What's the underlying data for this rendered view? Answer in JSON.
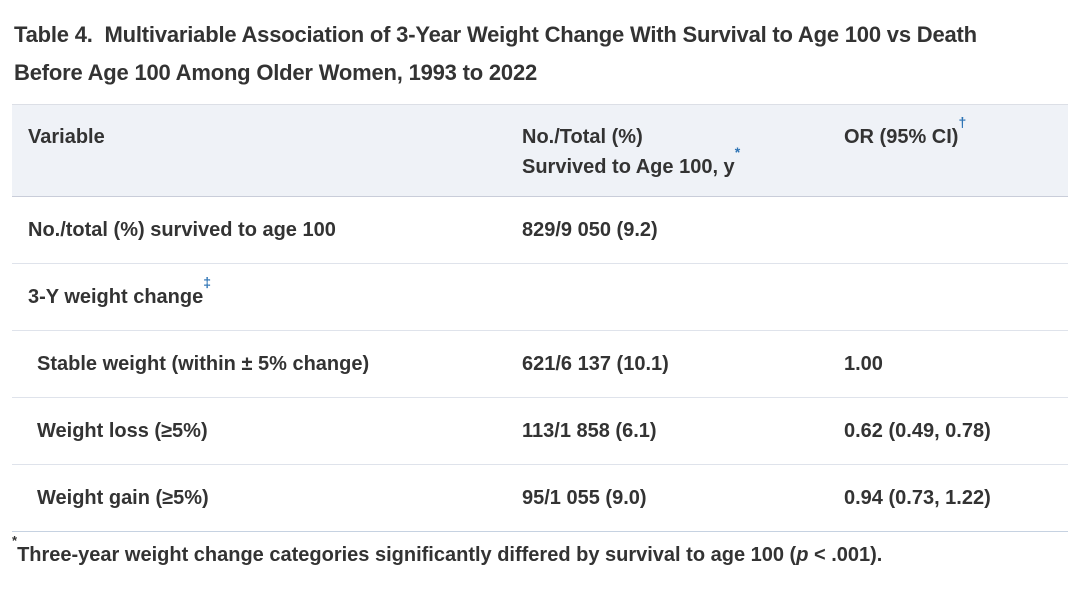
{
  "title_lines": [
    "Table 4.  Multivariable Association of 3-Year Weight Change With Survival to Age 100 vs Death",
    "Before Age 100 Among Older Women, 1993 to 2022"
  ],
  "colors": {
    "accent_blue": "#2E74B5",
    "header_background": "#EFF2F7",
    "text": "#333333"
  },
  "table": {
    "columns": [
      {
        "label": "Variable"
      },
      {
        "line1": "No./Total (%)",
        "line2": "Survived to Age 100, y",
        "sup": "*"
      },
      {
        "label": "OR (95% CI)",
        "sup": "†"
      }
    ],
    "rows": [
      {
        "label": "No./total (%) survived to age 100",
        "sup": "",
        "value": "829/9 050 (9.2)",
        "or": ""
      },
      {
        "label": "3-Y weight change",
        "sup": "‡",
        "value": "",
        "or": ""
      },
      {
        "label": "Stable weight (within ± 5% change)",
        "sup": "",
        "value": "621/6 137 (10.1)",
        "or": "1.00"
      },
      {
        "label": "Weight loss (≥5%)",
        "sup": "",
        "value": "113/1 858 (6.1)",
        "or": "0.62 (0.49, 0.78)"
      },
      {
        "label": "Weight gain (≥5%)",
        "sup": "",
        "value": "95/1 055 (9.0)",
        "or": "0.94 (0.73, 1.22)"
      }
    ]
  },
  "footnote": {
    "marker": "*",
    "text_start": "Three-year weight change categories significantly differed by survival to age 100 (",
    "p": "p",
    "text_end": " < .001)."
  }
}
